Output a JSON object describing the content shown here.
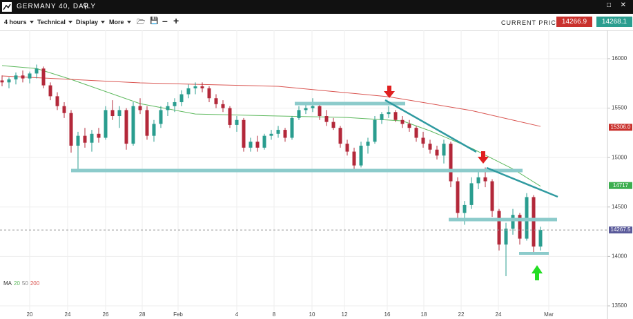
{
  "header": {
    "title": "GERMANY 40, DAILY"
  },
  "toolbar": {
    "timeframe": "4 hours",
    "menus": [
      "Technical",
      "Display",
      "More"
    ],
    "price_label": "CURRENT PRICE:",
    "sell": "14266.9",
    "buy": "14268.1"
  },
  "chart_data": {
    "type": "candlestick",
    "x": [
      0,
      1,
      2,
      3,
      4,
      5,
      6,
      7,
      8,
      9,
      10,
      11,
      12,
      13,
      14,
      15,
      16,
      17,
      18,
      19,
      20,
      21,
      22,
      23,
      24,
      25,
      26,
      27,
      28,
      29,
      30,
      31,
      32,
      33,
      34,
      35,
      36,
      37,
      38,
      39,
      40,
      41,
      42,
      43,
      44,
      45,
      46,
      47,
      48,
      49,
      50,
      51,
      52,
      53,
      54,
      55,
      56,
      57,
      58,
      59,
      60,
      61,
      62,
      63,
      64,
      65,
      66,
      67,
      68,
      69,
      70,
      71,
      72,
      73,
      74,
      75,
      76,
      77,
      78
    ],
    "ohlc": [
      [
        15780,
        15830,
        15720,
        15760
      ],
      [
        15760,
        15810,
        15700,
        15790
      ],
      [
        15790,
        15860,
        15740,
        15830
      ],
      [
        15830,
        15880,
        15760,
        15800
      ],
      [
        15800,
        15870,
        15750,
        15850
      ],
      [
        15850,
        15940,
        15800,
        15900
      ],
      [
        15900,
        15920,
        15700,
        15730
      ],
      [
        15730,
        15760,
        15580,
        15620
      ],
      [
        15620,
        15660,
        15480,
        15520
      ],
      [
        15520,
        15560,
        15400,
        15450
      ],
      [
        15450,
        15480,
        15050,
        15120
      ],
      [
        15120,
        15260,
        14880,
        15220
      ],
      [
        15220,
        15300,
        15100,
        15150
      ],
      [
        15150,
        15280,
        15060,
        15240
      ],
      [
        15240,
        15300,
        15150,
        15200
      ],
      [
        15200,
        15520,
        15180,
        15480
      ],
      [
        15480,
        15580,
        15380,
        15420
      ],
      [
        15420,
        15520,
        15300,
        15480
      ],
      [
        15480,
        15500,
        15080,
        15140
      ],
      [
        15140,
        15560,
        15120,
        15520
      ],
      [
        15520,
        15600,
        15440,
        15480
      ],
      [
        15480,
        15520,
        15180,
        15220
      ],
      [
        15220,
        15380,
        15160,
        15340
      ],
      [
        15340,
        15520,
        15300,
        15480
      ],
      [
        15480,
        15560,
        15420,
        15520
      ],
      [
        15520,
        15600,
        15460,
        15560
      ],
      [
        15560,
        15680,
        15520,
        15640
      ],
      [
        15640,
        15740,
        15600,
        15700
      ],
      [
        15700,
        15760,
        15640,
        15720
      ],
      [
        15720,
        15760,
        15660,
        15700
      ],
      [
        15700,
        15720,
        15560,
        15600
      ],
      [
        15600,
        15640,
        15500,
        15540
      ],
      [
        15540,
        15580,
        15460,
        15500
      ],
      [
        15500,
        15520,
        15300,
        15330
      ],
      [
        15330,
        15420,
        15260,
        15380
      ],
      [
        15380,
        15400,
        15060,
        15100
      ],
      [
        15100,
        15200,
        15060,
        15160
      ],
      [
        15160,
        15220,
        15060,
        15100
      ],
      [
        15100,
        15240,
        15080,
        15220
      ],
      [
        15220,
        15280,
        15180,
        15240
      ],
      [
        15240,
        15320,
        15200,
        15280
      ],
      [
        15280,
        15300,
        15160,
        15200
      ],
      [
        15200,
        15420,
        15180,
        15400
      ],
      [
        15400,
        15520,
        15380,
        15480
      ],
      [
        15480,
        15540,
        15440,
        15500
      ],
      [
        15500,
        15600,
        15460,
        15520
      ],
      [
        15520,
        15560,
        15380,
        15420
      ],
      [
        15420,
        15480,
        15320,
        15360
      ],
      [
        15360,
        15400,
        15280,
        15300
      ],
      [
        15300,
        15320,
        15100,
        15140
      ],
      [
        15140,
        15180,
        15020,
        15060
      ],
      [
        15060,
        15100,
        14860,
        14920
      ],
      [
        14920,
        15160,
        14900,
        15120
      ],
      [
        15120,
        15200,
        15040,
        15160
      ],
      [
        15160,
        15420,
        15140,
        15380
      ],
      [
        15380,
        15460,
        15340,
        15440
      ],
      [
        15440,
        15520,
        15400,
        15460
      ],
      [
        15460,
        15480,
        15360,
        15380
      ],
      [
        15380,
        15420,
        15300,
        15340
      ],
      [
        15340,
        15380,
        15260,
        15300
      ],
      [
        15300,
        15320,
        15160,
        15200
      ],
      [
        15200,
        15260,
        15100,
        15140
      ],
      [
        15140,
        15180,
        15040,
        15080
      ],
      [
        15080,
        15120,
        14980,
        15020
      ],
      [
        15020,
        15180,
        14940,
        15140
      ],
      [
        15140,
        15160,
        14700,
        14760
      ],
      [
        14760,
        14800,
        14380,
        14440
      ],
      [
        14440,
        14560,
        14320,
        14520
      ],
      [
        14520,
        14800,
        14480,
        14740
      ],
      [
        14740,
        14860,
        14680,
        14800
      ],
      [
        14800,
        14900,
        14700,
        14760
      ],
      [
        14760,
        14780,
        14400,
        14460
      ],
      [
        14460,
        14480,
        14060,
        14120
      ],
      [
        14120,
        14340,
        13800,
        14280
      ],
      [
        14280,
        14480,
        14220,
        14420
      ],
      [
        14420,
        14440,
        14120,
        14180
      ],
      [
        14180,
        14640,
        14160,
        14600
      ],
      [
        14600,
        14620,
        14040,
        14100
      ],
      [
        14100,
        14300,
        14060,
        14267.5
      ]
    ],
    "up_color": "#2a9d8f",
    "down_color": "#b3283a",
    "moving_averages": [
      {
        "name": "20",
        "color": "#5cb85c",
        "x": [
          0,
          5,
          10,
          20,
          28,
          40,
          50,
          58,
          62,
          68,
          74,
          78
        ],
        "values": [
          15930,
          15900,
          15790,
          15545,
          15440,
          15420,
          15405,
          15370,
          15270,
          15095,
          14885,
          14710
        ]
      },
      {
        "name": "200",
        "color": "#d9534f",
        "x": [
          0,
          10,
          20,
          40,
          56,
          68,
          78
        ],
        "values": [
          15825,
          15790,
          15755,
          15720,
          15615,
          15475,
          15315
        ]
      }
    ],
    "legend": {
      "label": "MA",
      "items": [
        {
          "name": "20",
          "color": "#5cb85c"
        },
        {
          "name": "50",
          "color": "#888888"
        },
        {
          "name": "200",
          "color": "#d9534f"
        }
      ]
    },
    "xlim": [
      -0.3,
      87.7
    ],
    "xticks": [
      {
        "value": 4,
        "label": "20"
      },
      {
        "value": 9.5,
        "label": "24"
      },
      {
        "value": 15,
        "label": "26"
      },
      {
        "value": 20.3,
        "label": "28"
      },
      {
        "value": 25.5,
        "label": "Feb"
      },
      {
        "value": 34,
        "label": "4"
      },
      {
        "value": 39.4,
        "label": "8"
      },
      {
        "value": 44.9,
        "label": "10"
      },
      {
        "value": 49.6,
        "label": "12"
      },
      {
        "value": 55.8,
        "label": "16"
      },
      {
        "value": 61.1,
        "label": "18"
      },
      {
        "value": 66.5,
        "label": "22"
      },
      {
        "value": 71.9,
        "label": "24"
      },
      {
        "value": 79.2,
        "label": "Mar"
      }
    ],
    "ylim": [
      13451,
      16286
    ],
    "yticks": [
      13500,
      14000,
      14500,
      15000,
      15500,
      16000
    ],
    "grid": true,
    "price_badges": [
      {
        "value": 15306.0,
        "label": "15306.0",
        "color": "#c9302c"
      },
      {
        "value": 14717,
        "label": "14717",
        "color": "#3cae4f"
      },
      {
        "value": 14267.5,
        "label": "14267.5",
        "color": "#5a5a9a"
      }
    ],
    "current_price_badge": 2
  }
}
